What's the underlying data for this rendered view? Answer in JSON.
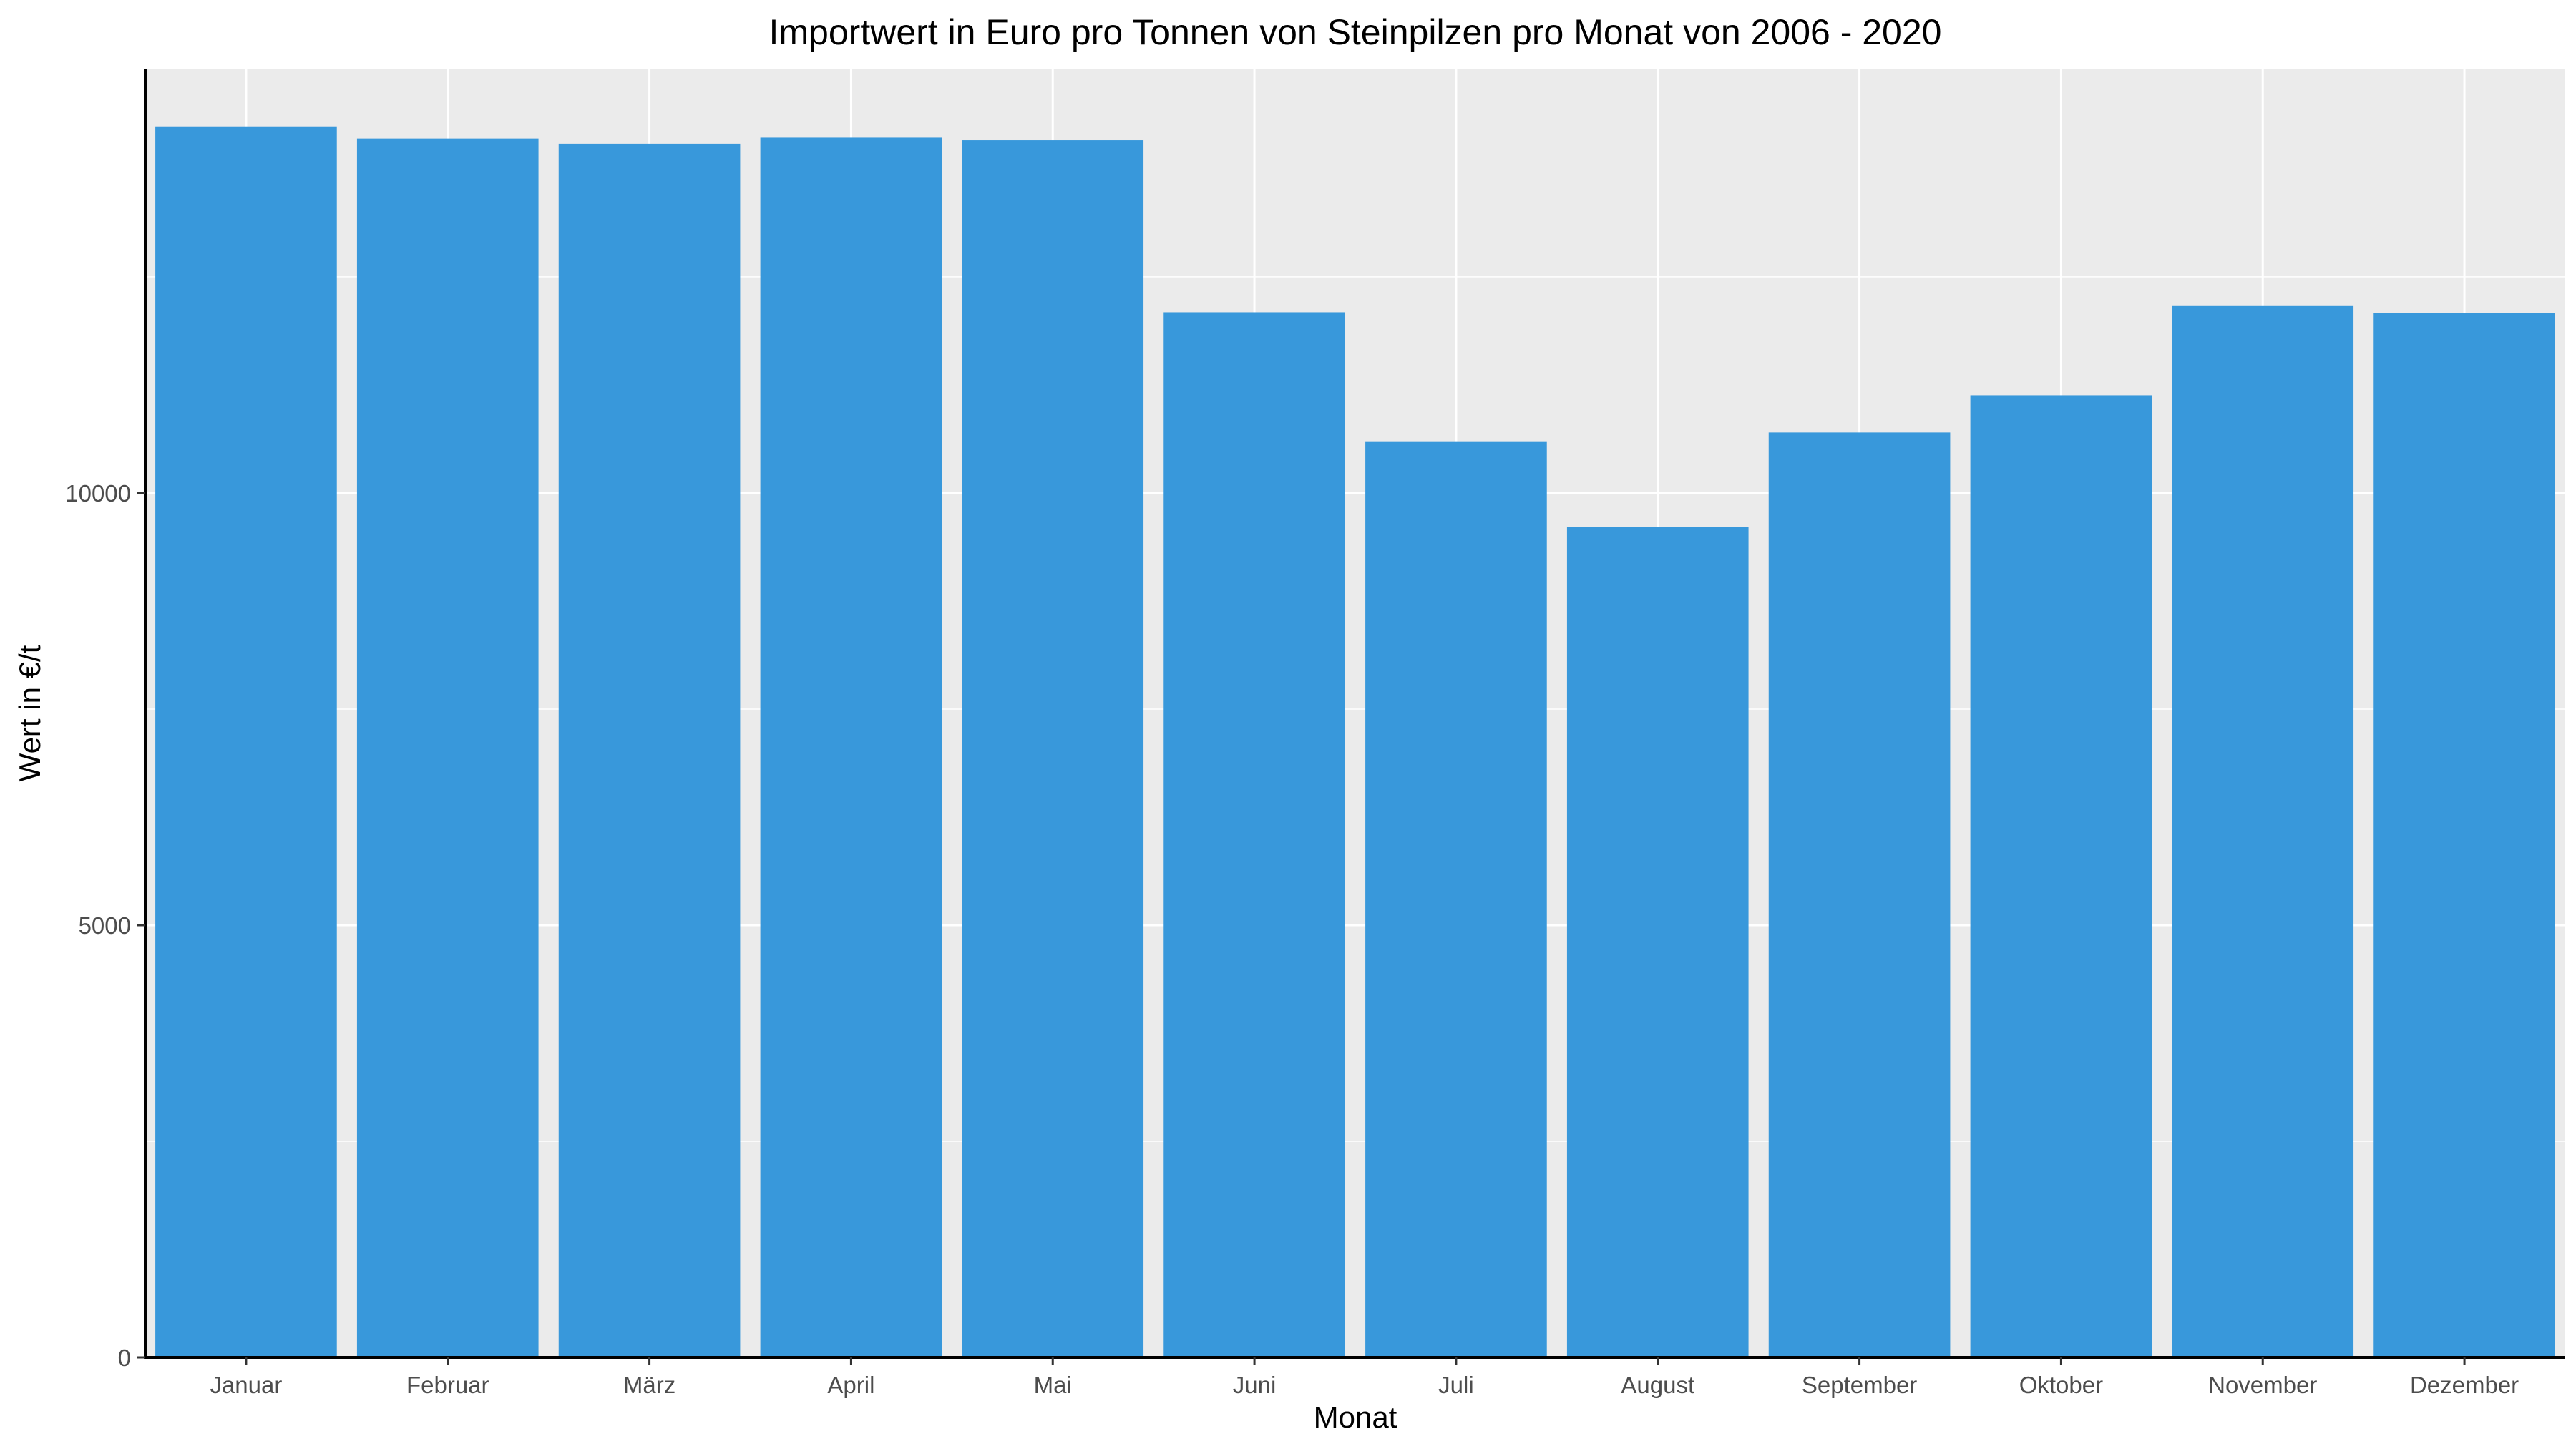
{
  "chart_data": {
    "type": "bar",
    "title": "Importwert in Euro pro Tonnen von Steinpilzen pro Monat von 2006 - 2020",
    "xlabel": "Monat",
    "ylabel": "Wert in €/t",
    "categories": [
      "Januar",
      "Februar",
      "März",
      "April",
      "Mai",
      "Juni",
      "Juli",
      "August",
      "September",
      "Oktober",
      "November",
      "Dezember"
    ],
    "values": [
      14240,
      14100,
      14040,
      14110,
      14080,
      12090,
      10590,
      9610,
      10700,
      11130,
      12170,
      12080
    ],
    "ylim": [
      0,
      14900
    ],
    "yticks": [
      0,
      5000,
      10000
    ],
    "grid": true,
    "legend": "none",
    "colors": {
      "bar": "#3898DB",
      "panel": "#EBEBEB",
      "grid": "#FFFFFF",
      "axis": "#000000",
      "tick_text": "#4D4D4D"
    }
  }
}
